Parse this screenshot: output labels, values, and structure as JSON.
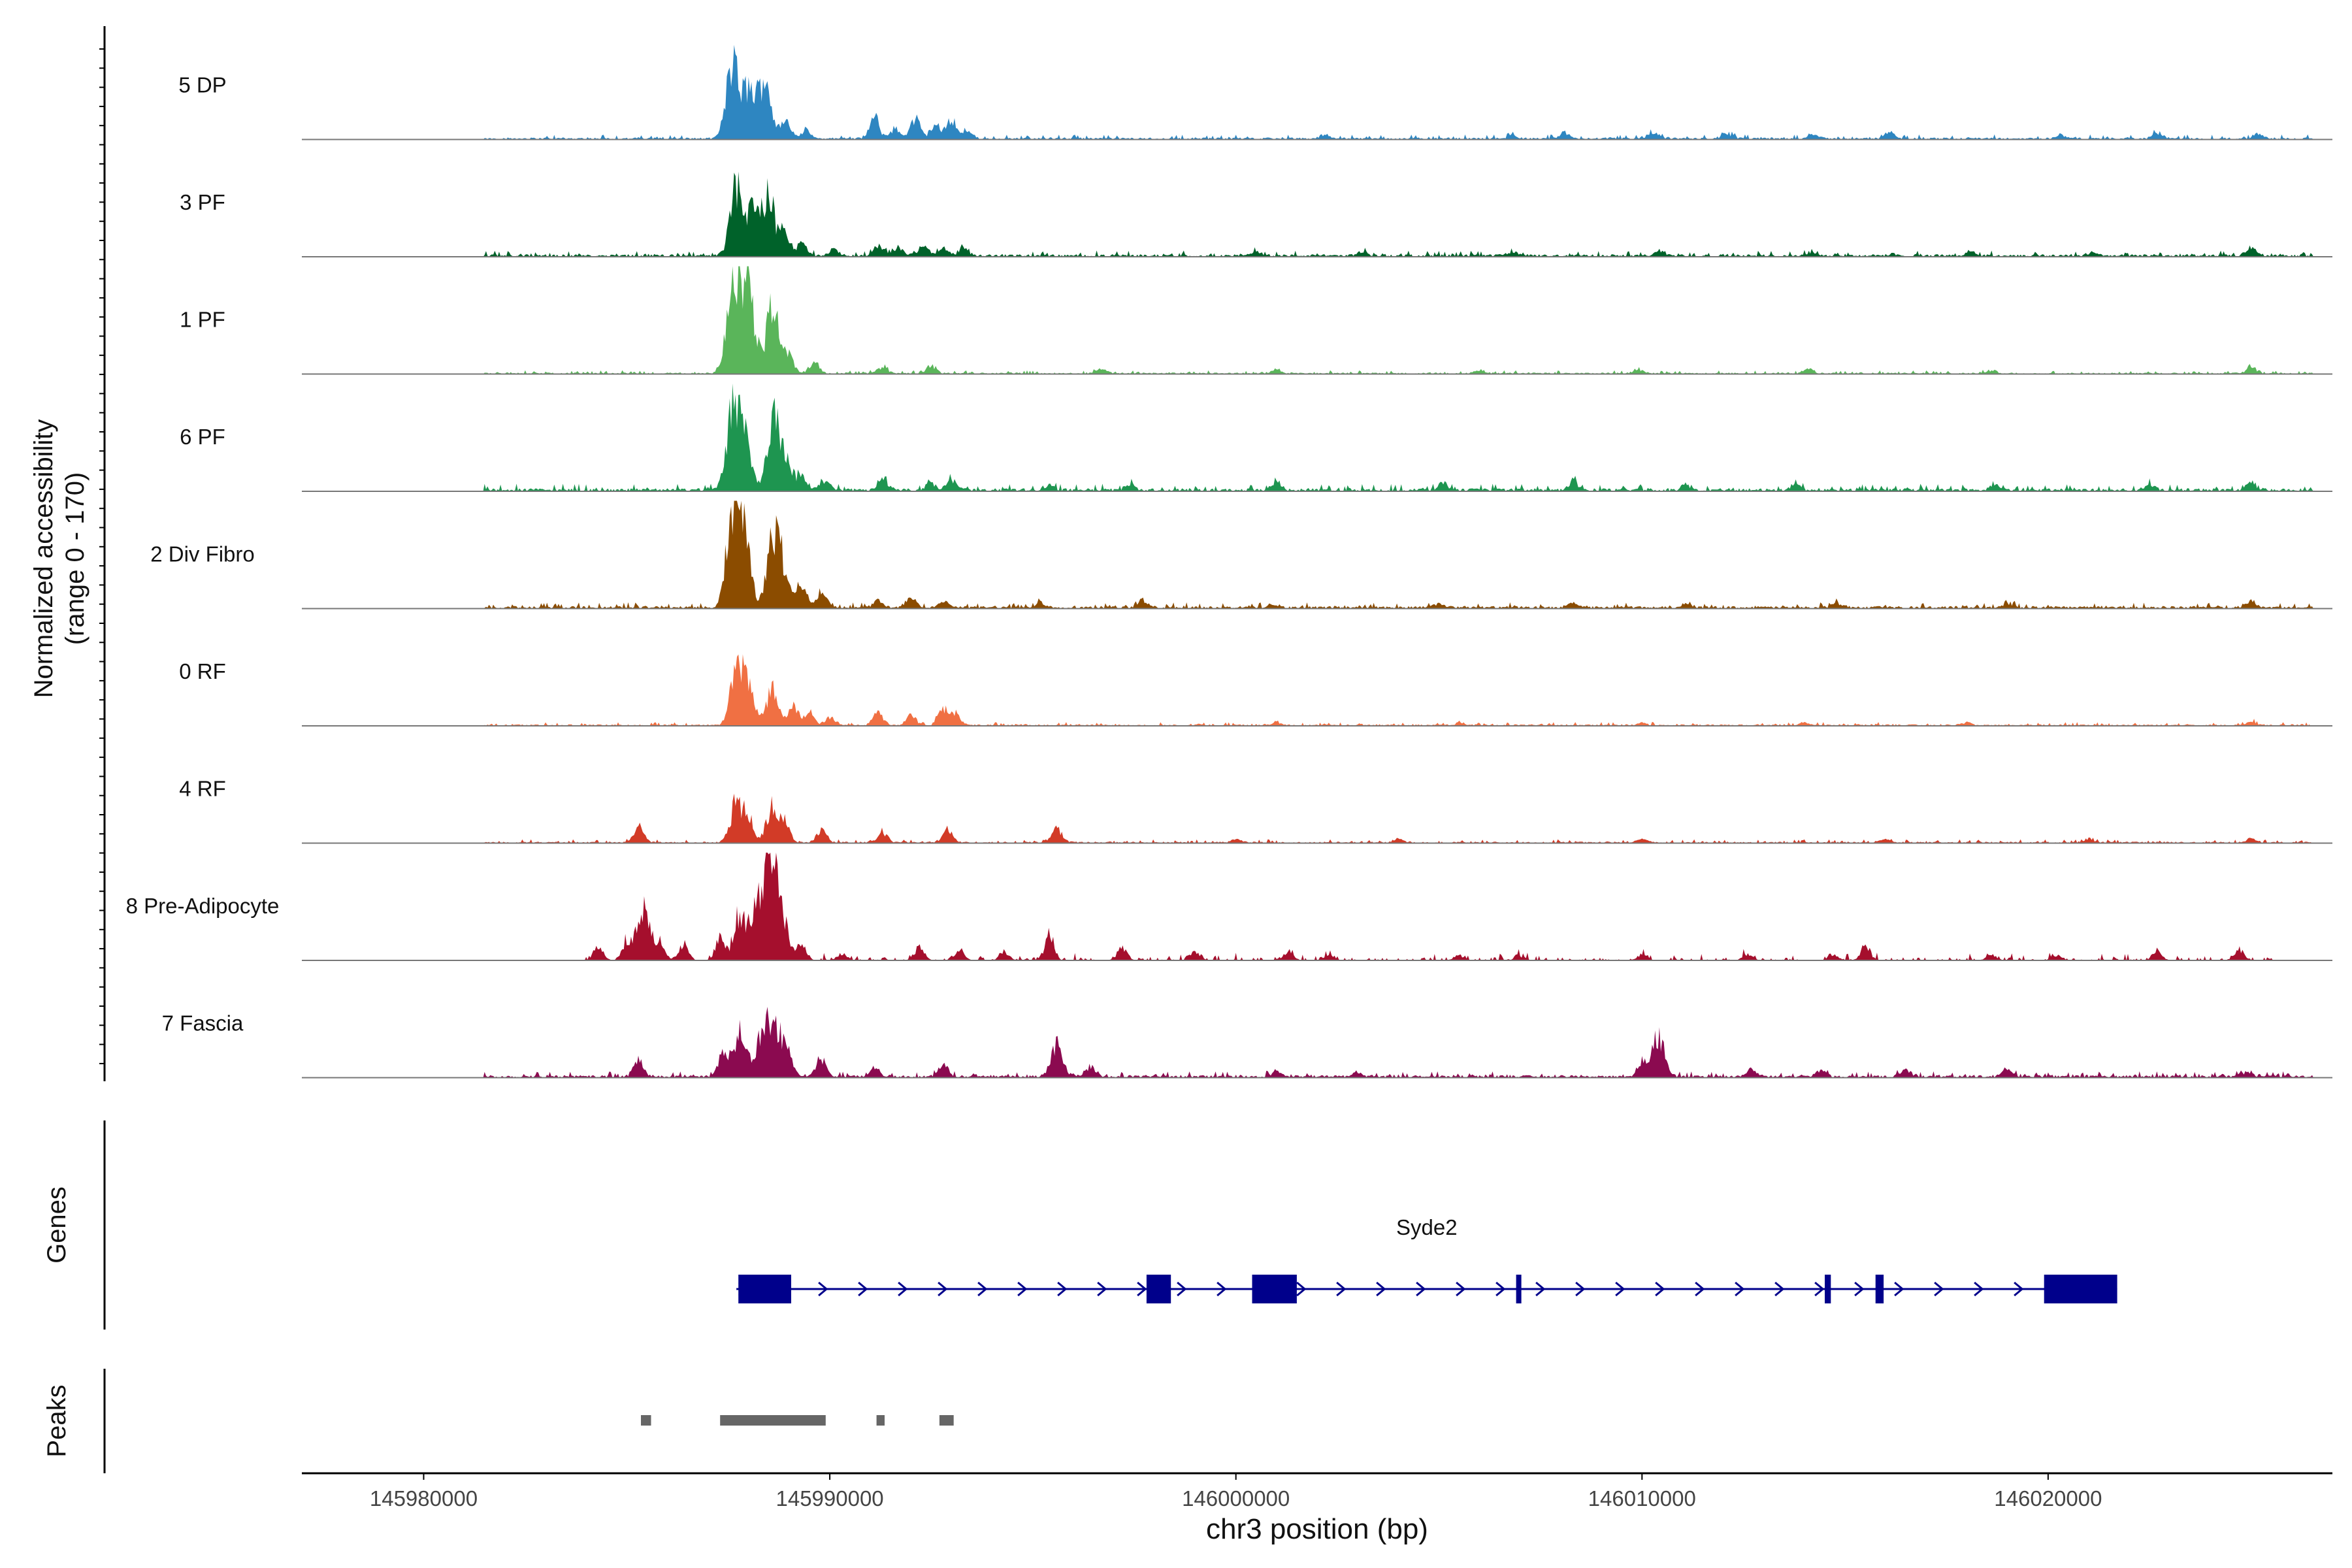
{
  "chart_data": {
    "type": "area",
    "title": "",
    "region": "chr3",
    "xlabel": "chr3 position (bp)",
    "ylabel_coverage": [
      "Normalized accessibility",
      "(range 0 - 170)"
    ],
    "ylabel_genes": "Genes",
    "ylabel_peaks": "Peaks",
    "xlim": [
      145977000,
      146027000
    ],
    "ylim": [
      0,
      170
    ],
    "xticks": [
      145980000,
      145990000,
      146000000,
      146010000,
      146020000
    ],
    "xtick_labels": [
      "145980000",
      "145990000",
      "146000000",
      "146010000",
      "146020000"
    ],
    "tracks": [
      {
        "name": "5 DP",
        "color": "#2E86C1",
        "peaks": [
          [
            145987600,
            115
          ],
          [
            145988000,
            75
          ],
          [
            145988400,
            95
          ],
          [
            145988900,
            25
          ],
          [
            145989400,
            15
          ],
          [
            145991100,
            30
          ],
          [
            145991600,
            15
          ],
          [
            145992100,
            30
          ],
          [
            145992600,
            20
          ],
          [
            145993000,
            30
          ],
          [
            145993400,
            10
          ],
          [
            146002200,
            6
          ],
          [
            146006800,
            5
          ],
          [
            146008100,
            8
          ],
          [
            146010300,
            9
          ],
          [
            146012100,
            8
          ],
          [
            146014200,
            7
          ],
          [
            146016100,
            9
          ],
          [
            146020300,
            6
          ],
          [
            146022700,
            9
          ],
          [
            146025200,
            6
          ]
        ],
        "noise_range": [
          145981500,
          146026500
        ],
        "noise_level": 4
      },
      {
        "name": "3 PF",
        "color": "#00622A",
        "peaks": [
          [
            145987700,
            105
          ],
          [
            145988100,
            70
          ],
          [
            145988500,
            95
          ],
          [
            145988900,
            30
          ],
          [
            145989300,
            20
          ],
          [
            145990100,
            10
          ],
          [
            145991200,
            15
          ],
          [
            145991700,
            12
          ],
          [
            145992300,
            15
          ],
          [
            145992800,
            12
          ],
          [
            145993300,
            12
          ],
          [
            146000500,
            5
          ],
          [
            146003100,
            6
          ],
          [
            146006800,
            5
          ],
          [
            146010400,
            6
          ],
          [
            146014200,
            6
          ],
          [
            146018100,
            7
          ],
          [
            146021100,
            5
          ],
          [
            146025000,
            12
          ]
        ],
        "noise_range": [
          145981500,
          146026500
        ],
        "noise_level": 5
      },
      {
        "name": "1 PF",
        "color": "#5AB55A",
        "peaks": [
          [
            145987600,
            130
          ],
          [
            145987900,
            110
          ],
          [
            145988100,
            60
          ],
          [
            145988600,
            105
          ],
          [
            145989000,
            25
          ],
          [
            145989600,
            15
          ],
          [
            145991300,
            10
          ],
          [
            145992500,
            10
          ],
          [
            145996700,
            7
          ],
          [
            146001000,
            6
          ],
          [
            146006000,
            6
          ],
          [
            146009900,
            5
          ],
          [
            146014100,
            6
          ],
          [
            146018600,
            5
          ],
          [
            146025000,
            10
          ]
        ],
        "noise_range": [
          145981500,
          146026500
        ],
        "noise_level": 3
      },
      {
        "name": "6 PF",
        "color": "#1E9550",
        "peaks": [
          [
            145987600,
            120
          ],
          [
            145987900,
            95
          ],
          [
            145988600,
            100
          ],
          [
            145988900,
            50
          ],
          [
            145989300,
            20
          ],
          [
            145989900,
            15
          ],
          [
            145991300,
            15
          ],
          [
            145992500,
            12
          ],
          [
            145993000,
            15
          ],
          [
            145995400,
            8
          ],
          [
            145997400,
            10
          ],
          [
            146001000,
            12
          ],
          [
            146005100,
            10
          ],
          [
            146008300,
            12
          ],
          [
            146011100,
            8
          ],
          [
            146013800,
            8
          ],
          [
            146018700,
            8
          ],
          [
            146022500,
            8
          ],
          [
            146025000,
            12
          ]
        ],
        "noise_range": [
          145981500,
          146026500
        ],
        "noise_level": 6
      },
      {
        "name": "2 Div Fibro",
        "color": "#8B4C00",
        "peaks": [
          [
            145987600,
            145
          ],
          [
            145987900,
            105
          ],
          [
            145988600,
            105
          ],
          [
            145988900,
            55
          ],
          [
            145989300,
            35
          ],
          [
            145989800,
            25
          ],
          [
            145991200,
            10
          ],
          [
            145992000,
            12
          ],
          [
            145992800,
            10
          ],
          [
            145995200,
            8
          ],
          [
            145997700,
            12
          ],
          [
            146000900,
            5
          ],
          [
            146005000,
            6
          ],
          [
            146008300,
            7
          ],
          [
            146011100,
            6
          ],
          [
            146014800,
            7
          ],
          [
            146019000,
            6
          ],
          [
            146025000,
            10
          ]
        ],
        "noise_range": [
          145981500,
          146026500
        ],
        "noise_level": 5
      },
      {
        "name": "0 RF",
        "color": "#F07043",
        "peaks": [
          [
            145987700,
            85
          ],
          [
            145988000,
            55
          ],
          [
            145988600,
            60
          ],
          [
            145989100,
            30
          ],
          [
            145989500,
            20
          ],
          [
            145990000,
            12
          ],
          [
            145991200,
            20
          ],
          [
            145992000,
            15
          ],
          [
            145992800,
            28
          ],
          [
            145993100,
            15
          ],
          [
            146001000,
            4
          ],
          [
            146005500,
            4
          ],
          [
            146010000,
            4
          ],
          [
            146014000,
            4
          ],
          [
            146018000,
            4
          ],
          [
            146025000,
            5
          ]
        ],
        "noise_range": [
          145981500,
          146026500
        ],
        "noise_level": 3
      },
      {
        "name": "4 RF",
        "color": "#D23B27",
        "peaks": [
          [
            145985300,
            25
          ],
          [
            145987700,
            60
          ],
          [
            145988000,
            40
          ],
          [
            145988600,
            58
          ],
          [
            145988900,
            25
          ],
          [
            145989800,
            20
          ],
          [
            145991300,
            15
          ],
          [
            145992900,
            18
          ],
          [
            145995600,
            20
          ],
          [
            146000000,
            5
          ],
          [
            146004000,
            6
          ],
          [
            146010000,
            5
          ],
          [
            146016000,
            6
          ],
          [
            146021000,
            5
          ],
          [
            146025000,
            6
          ]
        ],
        "noise_range": [
          145981500,
          146026500
        ],
        "noise_level": 3
      },
      {
        "name": "8 Pre-Adipocyte",
        "color": "#A50F2D",
        "peaks": [
          [
            145984300,
            20
          ],
          [
            145985000,
            25
          ],
          [
            145985400,
            85
          ],
          [
            145985800,
            30
          ],
          [
            145986400,
            25
          ],
          [
            145987300,
            35
          ],
          [
            145987800,
            75
          ],
          [
            145988200,
            65
          ],
          [
            145988500,
            160
          ],
          [
            145988800,
            80
          ],
          [
            145989300,
            25
          ],
          [
            145990300,
            10
          ],
          [
            145992200,
            20
          ],
          [
            145993200,
            15
          ],
          [
            145994300,
            12
          ],
          [
            145995400,
            35
          ],
          [
            145997200,
            20
          ],
          [
            145999000,
            15
          ],
          [
            146001300,
            12
          ],
          [
            146002300,
            10
          ],
          [
            146005500,
            8
          ],
          [
            146007000,
            7
          ],
          [
            146010000,
            9
          ],
          [
            146012600,
            10
          ],
          [
            146014700,
            10
          ],
          [
            146015500,
            20
          ],
          [
            146018600,
            10
          ],
          [
            146020200,
            8
          ],
          [
            146022700,
            10
          ],
          [
            146024700,
            15
          ]
        ],
        "noise_range": [
          145984000,
          146025500
        ],
        "noise_level": 6,
        "sparse": true
      },
      {
        "name": "7 Fascia",
        "color": "#8B0A50",
        "peaks": [
          [
            145985300,
            25
          ],
          [
            145987400,
            40
          ],
          [
            145987800,
            70
          ],
          [
            145988300,
            55
          ],
          [
            145988600,
            80
          ],
          [
            145988900,
            45
          ],
          [
            145989800,
            25
          ],
          [
            145991100,
            12
          ],
          [
            145992800,
            18
          ],
          [
            145995600,
            50
          ],
          [
            145996400,
            15
          ],
          [
            146001000,
            10
          ],
          [
            146003000,
            8
          ],
          [
            146010000,
            20
          ],
          [
            146010400,
            60
          ],
          [
            146012700,
            10
          ],
          [
            146014400,
            10
          ],
          [
            146016500,
            10
          ],
          [
            146019000,
            12
          ],
          [
            146024900,
            8
          ]
        ],
        "noise_range": [
          145981500,
          146026500
        ],
        "noise_level": 5
      }
    ],
    "gene": {
      "name": "Syde2",
      "color": "#00008B",
      "start": 145987700,
      "end": 146021700,
      "strand": "+",
      "exons": [
        [
          145987750,
          145989050
        ],
        [
          145997800,
          145998400
        ],
        [
          146000400,
          146001500
        ],
        [
          146006900,
          146007000
        ],
        [
          146014500,
          146014650
        ],
        [
          146015750,
          146015950
        ],
        [
          146019900,
          146021700
        ]
      ]
    },
    "peaks": {
      "color": "#666666",
      "regions": [
        [
          145985350,
          145985600
        ],
        [
          145987300,
          145989900
        ],
        [
          145991150,
          145991350
        ],
        [
          145992700,
          145993050
        ]
      ]
    }
  }
}
